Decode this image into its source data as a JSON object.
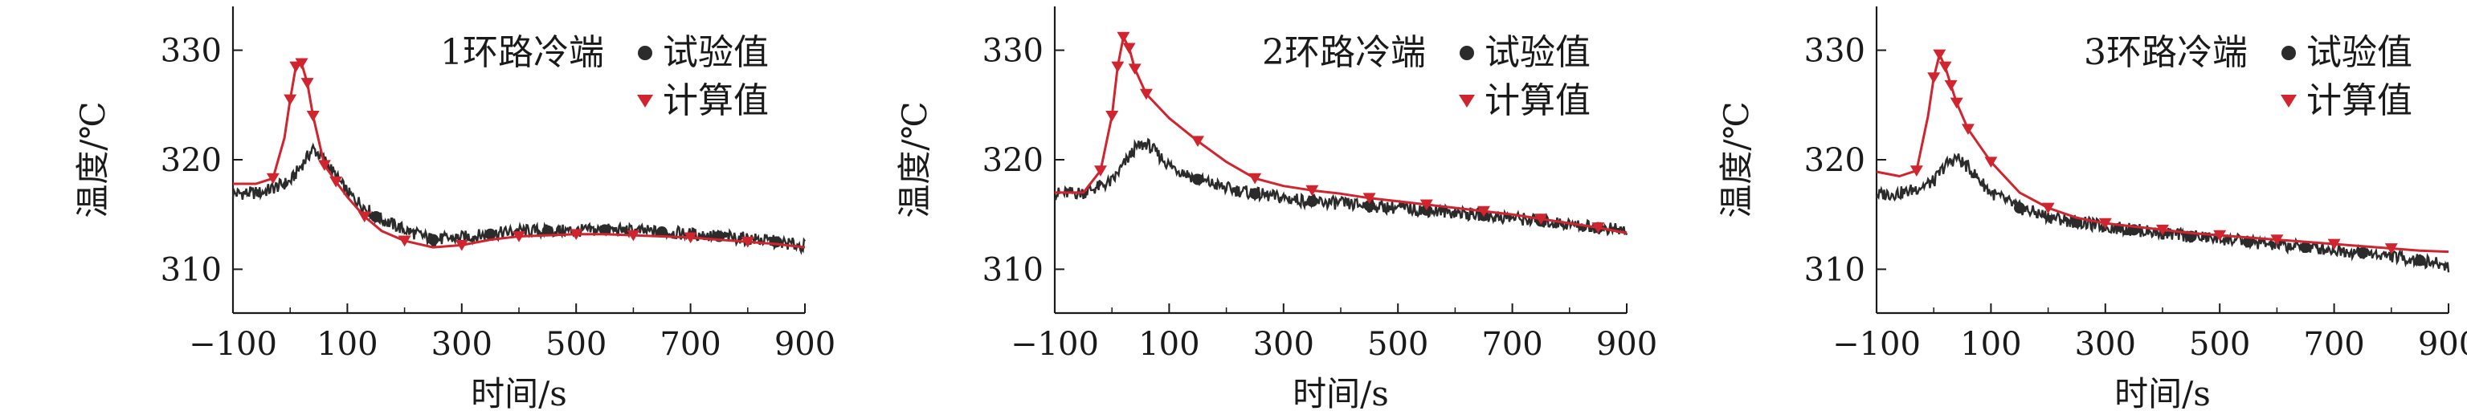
{
  "colors": {
    "experiment": "#2b2b2b",
    "calculation": "#d0242e",
    "axis": "#1a1a1a"
  },
  "chart_data": [
    {
      "type": "line",
      "title": "1环路冷端",
      "xlabel": "时间/s",
      "ylabel": "温度/℃",
      "xlim": [
        -100,
        900
      ],
      "ylim": [
        306,
        334
      ],
      "xticks": [
        "−100",
        "100",
        "300",
        "500",
        "700",
        "900"
      ],
      "yticks": [
        "310",
        "320",
        "330"
      ],
      "legend": {
        "position": "top-right",
        "items": [
          "试验值",
          "计算值"
        ]
      },
      "series": [
        {
          "name": "试验值",
          "marker": "circle",
          "x": [
            -100,
            -50,
            0,
            20,
            40,
            60,
            100,
            150,
            200,
            250,
            300,
            350,
            400,
            450,
            500,
            550,
            600,
            650,
            700,
            750,
            800,
            850,
            900
          ],
          "y": [
            316.9,
            317.0,
            318.0,
            319.5,
            321.0,
            320.0,
            317.0,
            314.8,
            313.6,
            312.7,
            312.9,
            313.2,
            313.5,
            313.5,
            313.5,
            313.6,
            313.5,
            313.4,
            313.2,
            313.0,
            312.8,
            312.5,
            312.1
          ]
        },
        {
          "name": "计算值",
          "marker": "triangle",
          "x": [
            -100,
            -60,
            -30,
            -10,
            0,
            10,
            20,
            30,
            40,
            60,
            80,
            100,
            130,
            160,
            200,
            250,
            300,
            350,
            400,
            450,
            500,
            550,
            600,
            650,
            700,
            750,
            800,
            850,
            900
          ],
          "y": [
            317.8,
            317.8,
            318.3,
            322.0,
            325.5,
            328.5,
            328.8,
            327.0,
            324.0,
            319.5,
            318.0,
            316.6,
            314.8,
            313.5,
            312.6,
            312.0,
            312.2,
            312.7,
            313.0,
            313.1,
            313.2,
            313.2,
            313.1,
            313.0,
            312.9,
            312.7,
            312.5,
            312.3,
            312.0
          ]
        }
      ]
    },
    {
      "type": "line",
      "title": "2环路冷端",
      "xlabel": "时间/s",
      "ylabel": "温度/℃",
      "xlim": [
        -100,
        900
      ],
      "ylim": [
        306,
        334
      ],
      "xticks": [
        "−100",
        "100",
        "300",
        "500",
        "700",
        "900"
      ],
      "yticks": [
        "310",
        "320",
        "330"
      ],
      "legend": {
        "position": "top-right",
        "items": [
          "试验值",
          "计算值"
        ]
      },
      "series": [
        {
          "name": "试验值",
          "marker": "circle",
          "x": [
            -100,
            -50,
            0,
            20,
            40,
            60,
            100,
            150,
            200,
            250,
            300,
            350,
            400,
            450,
            500,
            550,
            600,
            650,
            700,
            750,
            800,
            850,
            900
          ],
          "y": [
            316.9,
            317.0,
            318.0,
            319.5,
            321.0,
            321.5,
            319.5,
            318.2,
            317.4,
            316.9,
            316.5,
            316.2,
            316.0,
            315.8,
            315.6,
            315.4,
            315.2,
            314.9,
            314.7,
            314.4,
            314.1,
            313.8,
            313.5
          ]
        },
        {
          "name": "计算值",
          "marker": "triangle",
          "x": [
            -100,
            -50,
            -20,
            0,
            10,
            20,
            30,
            40,
            60,
            100,
            150,
            200,
            250,
            300,
            350,
            400,
            450,
            500,
            550,
            600,
            650,
            700,
            750,
            800,
            850,
            900
          ],
          "y": [
            317.0,
            317.0,
            319.0,
            324.0,
            328.5,
            331.2,
            330.2,
            328.3,
            326.0,
            323.8,
            321.7,
            319.8,
            318.3,
            317.6,
            317.2,
            316.9,
            316.5,
            316.2,
            315.9,
            315.6,
            315.3,
            315.0,
            314.6,
            314.2,
            313.8,
            313.3
          ]
        }
      ]
    },
    {
      "type": "line",
      "title": "3环路冷端",
      "xlabel": "时间/s",
      "ylabel": "温度/℃",
      "xlim": [
        -100,
        900
      ],
      "ylim": [
        306,
        334
      ],
      "xticks": [
        "−100",
        "100",
        "300",
        "500",
        "700",
        "900"
      ],
      "yticks": [
        "310",
        "320",
        "330"
      ],
      "legend": {
        "position": "top-right",
        "items": [
          "试验值",
          "计算值"
        ]
      },
      "series": [
        {
          "name": "试验值",
          "marker": "circle",
          "x": [
            -100,
            -50,
            0,
            20,
            40,
            60,
            100,
            150,
            200,
            250,
            300,
            350,
            400,
            450,
            500,
            550,
            600,
            650,
            700,
            750,
            800,
            850,
            900
          ],
          "y": [
            316.8,
            317.0,
            318.0,
            319.5,
            320.2,
            319.3,
            317.0,
            315.6,
            314.8,
            314.3,
            313.9,
            313.6,
            313.3,
            313.0,
            312.8,
            312.5,
            312.2,
            312.0,
            311.8,
            311.5,
            311.2,
            310.8,
            310.3
          ]
        },
        {
          "name": "计算值",
          "marker": "triangle",
          "x": [
            -100,
            -60,
            -30,
            -10,
            0,
            10,
            20,
            30,
            40,
            60,
            100,
            150,
            200,
            250,
            300,
            350,
            400,
            450,
            500,
            550,
            600,
            650,
            700,
            750,
            800,
            850,
            900
          ],
          "y": [
            318.9,
            318.5,
            319.0,
            324.0,
            327.5,
            329.6,
            328.5,
            326.8,
            325.2,
            322.8,
            319.8,
            317.0,
            315.6,
            314.7,
            314.2,
            313.9,
            313.6,
            313.3,
            313.1,
            312.9,
            312.7,
            312.5,
            312.3,
            312.1,
            311.9,
            311.7,
            311.6
          ]
        }
      ]
    }
  ]
}
